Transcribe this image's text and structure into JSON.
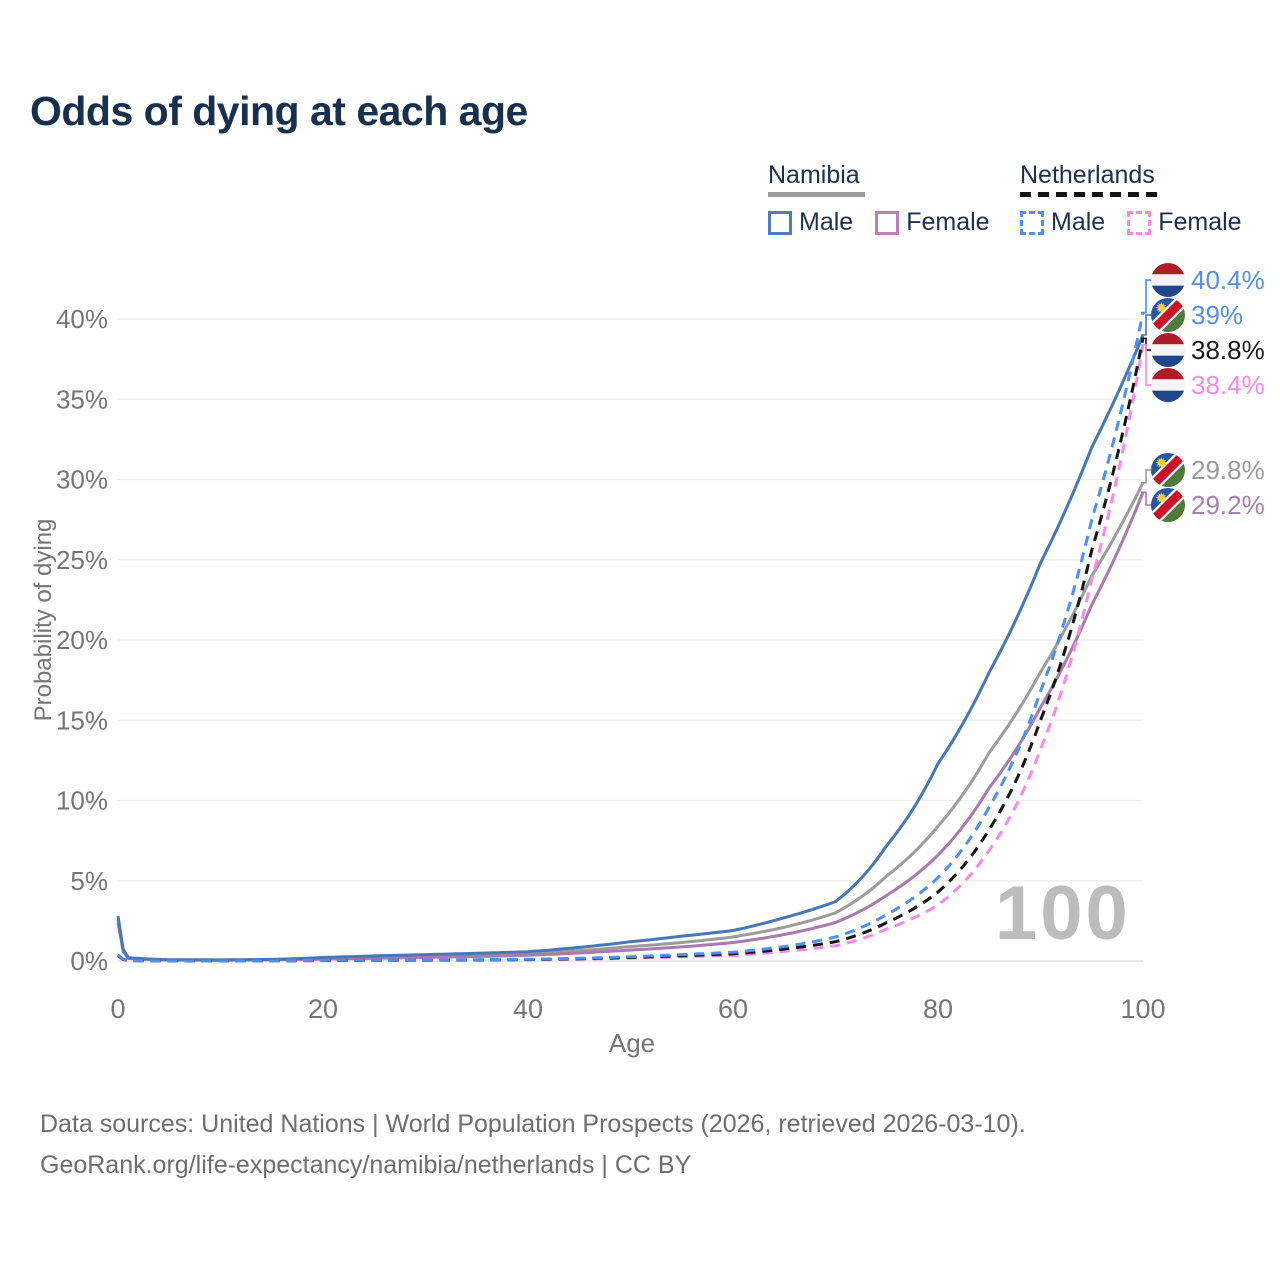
{
  "title": "Odds of dying at each age",
  "legend": {
    "groups": [
      {
        "label": "Namibia",
        "line_style": "solid",
        "line_color": "#9c9c9c",
        "items": [
          {
            "label": "Male",
            "color": "#4f7cbe"
          },
          {
            "label": "Female",
            "color": "#bd7fb5"
          }
        ]
      },
      {
        "label": "Netherlands",
        "line_style": "dashed",
        "line_color": "#141414",
        "items": [
          {
            "label": "Male",
            "color": "#4a90f5"
          },
          {
            "label": "Female",
            "color": "#fb87e8"
          }
        ]
      }
    ]
  },
  "footer": {
    "line1": "Data sources: United Nations | World Population Prospects (2026, retrieved 2026-03-10).",
    "line2": "GeoRank.org/life-expectancy/namibia/netherlands | CC BY"
  },
  "chart_data": {
    "type": "line",
    "title": "Odds of dying at each age",
    "xlabel": "Age",
    "ylabel": "Probability of dying",
    "watermark": "100",
    "grid": "horizontal",
    "legend_position": "top-right",
    "xlim": [
      0,
      100
    ],
    "ylim_pct": [
      0,
      42
    ],
    "x_ticks": [
      0,
      20,
      40,
      60,
      80,
      100
    ],
    "y_ticks_pct": [
      0,
      5,
      10,
      15,
      20,
      25,
      30,
      35,
      40
    ],
    "ages": [
      0,
      1,
      5,
      10,
      15,
      20,
      25,
      30,
      35,
      40,
      45,
      50,
      55,
      60,
      65,
      70,
      75,
      80,
      85,
      90,
      95,
      100
    ],
    "series": [
      {
        "id": "namibia-both",
        "name": "Namibia (both sexes)",
        "country": "Namibia",
        "sex": "Both",
        "style": "solid",
        "color": "#9c9c9c",
        "label_color": "#9b9b9b",
        "end_label": "29.8%",
        "values_pct": [
          2.6,
          0.18,
          0.07,
          0.06,
          0.09,
          0.17,
          0.24,
          0.3,
          0.37,
          0.46,
          0.65,
          0.9,
          1.15,
          1.5,
          2.1,
          3.0,
          5.3,
          8.4,
          13.0,
          18.0,
          24.0,
          29.8
        ]
      },
      {
        "id": "namibia-female",
        "name": "Namibia Female",
        "country": "Namibia",
        "sex": "Female",
        "style": "solid",
        "color": "#a77bad",
        "label_color": "#a87fb2",
        "end_label": "29.2%",
        "values_pct": [
          2.4,
          0.16,
          0.06,
          0.05,
          0.08,
          0.12,
          0.17,
          0.22,
          0.28,
          0.36,
          0.5,
          0.68,
          0.88,
          1.15,
          1.65,
          2.4,
          4.1,
          6.6,
          10.8,
          15.8,
          22.2,
          29.2
        ]
      },
      {
        "id": "namibia-male",
        "name": "Namibia Male",
        "country": "Namibia",
        "sex": "Male",
        "style": "solid",
        "color": "#4677b8",
        "label_color": "#558fea",
        "end_label": "39%",
        "values_pct": [
          2.8,
          0.2,
          0.08,
          0.07,
          0.1,
          0.22,
          0.32,
          0.4,
          0.48,
          0.58,
          0.85,
          1.2,
          1.55,
          1.9,
          2.7,
          3.7,
          7.2,
          12.3,
          18.0,
          24.8,
          32.0,
          39.0
        ]
      },
      {
        "id": "netherlands-female",
        "name": "Netherlands Female",
        "country": "Netherlands",
        "sex": "Female",
        "style": "dashed",
        "color": "#fb87e8",
        "label_color": "#fb87e8",
        "end_label": "38.4%",
        "values_pct": [
          0.3,
          0.025,
          0.009,
          0.009,
          0.012,
          0.025,
          0.03,
          0.04,
          0.055,
          0.075,
          0.115,
          0.18,
          0.27,
          0.35,
          0.6,
          0.95,
          2.0,
          3.5,
          6.9,
          13.2,
          23.8,
          38.4
        ]
      },
      {
        "id": "netherlands-both",
        "name": "Netherlands (both sexes)",
        "country": "Netherlands",
        "sex": "Both",
        "style": "dashed",
        "color": "#151515",
        "label_color": "#1a1a1a",
        "end_label": "38.8%",
        "values_pct": [
          0.35,
          0.028,
          0.01,
          0.01,
          0.015,
          0.03,
          0.04,
          0.05,
          0.065,
          0.09,
          0.14,
          0.22,
          0.33,
          0.45,
          0.75,
          1.2,
          2.4,
          4.3,
          8.2,
          15.0,
          25.6,
          38.8
        ]
      },
      {
        "id": "netherlands-male",
        "name": "Netherlands Male",
        "country": "Netherlands",
        "sex": "Male",
        "style": "dashed",
        "color": "#4a90f5",
        "label_color": "#558fea",
        "end_label": "40.4%",
        "values_pct": [
          0.4,
          0.03,
          0.01,
          0.01,
          0.02,
          0.04,
          0.05,
          0.06,
          0.08,
          0.11,
          0.17,
          0.27,
          0.4,
          0.55,
          0.9,
          1.5,
          2.9,
          5.2,
          9.6,
          16.8,
          27.5,
          40.4
        ]
      }
    ]
  },
  "icons": {
    "netherlands_flag": {
      "red": "#AE1C28",
      "white": "#F4F4F4",
      "blue": "#21468B"
    },
    "namibia_flag": {
      "blue": "#2457A4",
      "red": "#CE1126",
      "green": "#4E7A3C",
      "white": "#FFFFFF",
      "sun": "#FFD02C"
    }
  }
}
